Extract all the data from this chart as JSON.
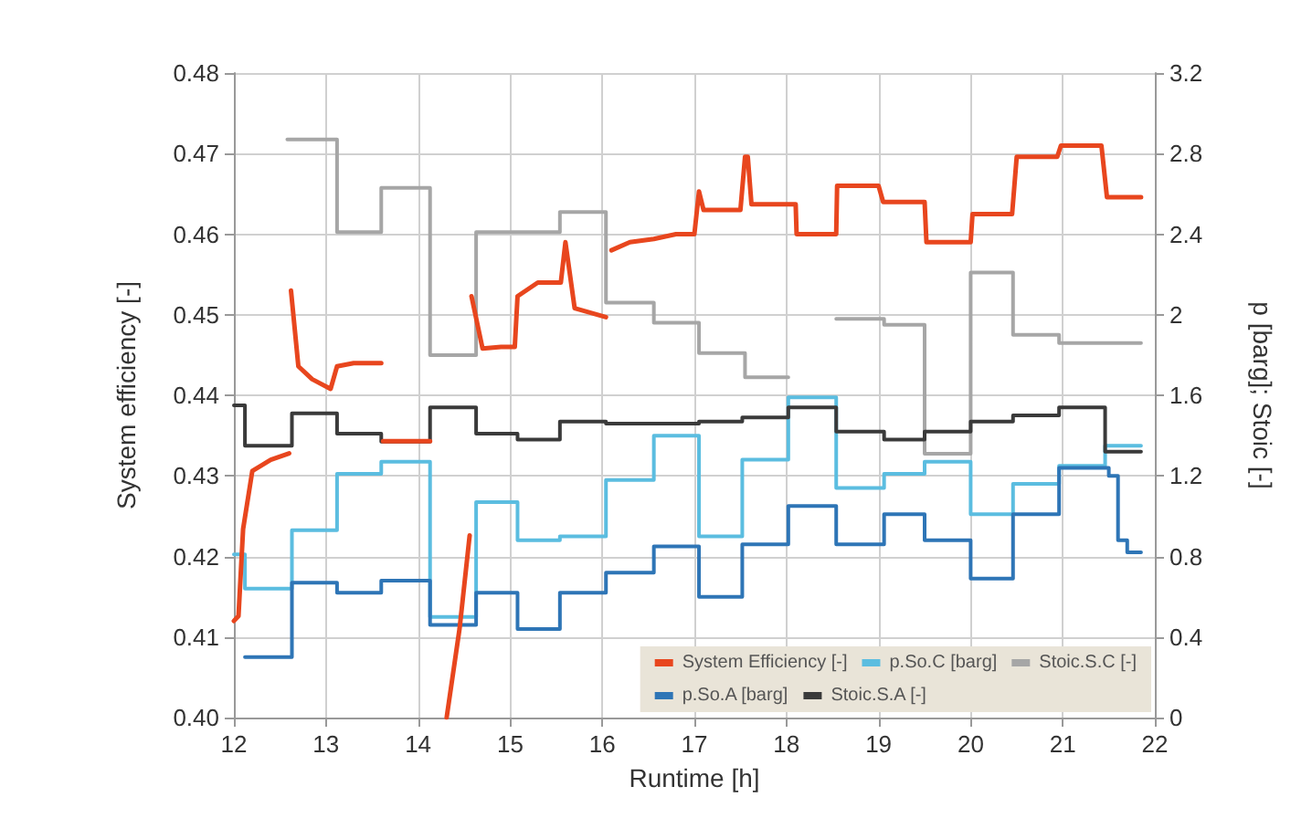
{
  "chart_data": {
    "type": "line",
    "xlabel": "Runtime [h]",
    "ylabel": "System efficiency [-]",
    "y2label": "p [barg]; Stoic [-]",
    "xlim": [
      12,
      22
    ],
    "xticks": [
      12,
      13,
      14,
      15,
      16,
      17,
      18,
      19,
      20,
      21,
      22
    ],
    "ylim": [
      0.4,
      0.48
    ],
    "yticks": [
      {
        "value": 0.4,
        "label": "0.40"
      },
      {
        "value": 0.41,
        "label": "0.41"
      },
      {
        "value": 0.42,
        "label": "0.42"
      },
      {
        "value": 0.43,
        "label": "0.43"
      },
      {
        "value": 0.44,
        "label": "0.44"
      },
      {
        "value": 0.45,
        "label": "0.45"
      },
      {
        "value": 0.46,
        "label": "0.46"
      },
      {
        "value": 0.47,
        "label": "0.47"
      },
      {
        "value": 0.48,
        "label": "0.48"
      }
    ],
    "y2lim": [
      0,
      3.2
    ],
    "y2ticks": [
      0,
      0.4,
      0.8,
      1.2,
      1.6,
      2,
      2.4,
      2.8,
      3.2
    ],
    "grid": true,
    "legend": "bottom right",
    "marker": "none",
    "line_style": "solid",
    "series": [
      {
        "name": "System Efficiency [-]",
        "color": "#e8461e",
        "x": [
          12.0,
          12.05,
          12.1,
          12.2,
          12.4,
          12.6,
          12.61,
          12.62,
          12.7,
          12.85,
          13.05,
          13.12,
          13.3,
          13.6,
          13.61,
          13.62,
          13.8,
          14.13,
          14.2,
          14.31,
          14.45,
          14.56,
          14.57,
          14.58,
          14.7,
          14.9,
          15.05,
          15.08,
          15.3,
          15.55,
          15.6,
          15.7,
          16.04,
          16.05,
          16.1,
          16.3,
          16.56,
          16.8,
          17.0,
          17.05,
          17.1,
          17.3,
          17.5,
          17.55,
          17.58,
          17.62,
          17.9,
          18.1,
          18.11,
          18.3,
          18.54,
          18.55,
          18.8,
          19.0,
          19.05,
          19.3,
          19.5,
          19.52,
          19.8,
          20.0,
          20.02,
          20.2,
          20.45,
          20.5,
          20.7,
          20.94,
          20.98,
          21.2,
          21.42,
          21.48,
          21.7,
          21.85
        ],
        "values": [
          0.412,
          0.4126,
          0.4234,
          0.4306,
          0.432,
          0.4328,
          null,
          0.453,
          0.4436,
          0.442,
          0.4408,
          0.4436,
          0.444,
          0.444,
          null,
          0.4343,
          0.4343,
          0.4343,
          null,
          0.4,
          0.411,
          0.4226,
          null,
          0.4523,
          0.4458,
          0.446,
          0.446,
          0.4523,
          0.454,
          0.454,
          0.459,
          0.4508,
          0.4497,
          null,
          0.458,
          0.459,
          0.4594,
          0.46,
          0.46,
          0.4653,
          0.463,
          0.463,
          0.463,
          0.4696,
          0.4696,
          0.4637,
          0.4637,
          0.4637,
          0.46,
          0.46,
          0.46,
          0.466,
          0.466,
          0.466,
          0.464,
          0.464,
          0.464,
          0.459,
          0.459,
          0.459,
          0.4625,
          0.4625,
          0.4625,
          0.4696,
          0.4696,
          0.4696,
          0.471,
          0.471,
          0.471,
          0.4646,
          0.4646,
          0.4646
        ]
      },
      {
        "name": "p.So.C [barg]",
        "type": "step",
        "axis": "y2",
        "color": "#5bbde0",
        "x": [
          12.0,
          12.12,
          12.63,
          13.12,
          13.6,
          14.13,
          14.63,
          15.08,
          15.54,
          16.04,
          16.56,
          17.05,
          17.52,
          18.02,
          18.54,
          19.06,
          19.5,
          20.0,
          20.46,
          20.96,
          21.46,
          21.85
        ],
        "values": [
          0.81,
          0.64,
          0.93,
          1.21,
          1.27,
          0.5,
          1.07,
          0.88,
          0.9,
          1.18,
          1.4,
          0.9,
          1.28,
          1.59,
          1.14,
          1.21,
          1.27,
          1.01,
          1.16,
          1.25,
          1.35,
          1.35
        ]
      },
      {
        "name": "Stoic.S.C [-]",
        "type": "step",
        "axis": "y2",
        "color": "#a6a6a6",
        "x": [
          12.58,
          13.12,
          13.6,
          14.13,
          14.63,
          15.08,
          15.54,
          16.04,
          16.56,
          17.05,
          17.55,
          18.02,
          18.54,
          19.06,
          19.5,
          20.0,
          20.46,
          20.96,
          21.85
        ],
        "values": [
          2.87,
          2.41,
          2.63,
          1.8,
          2.41,
          2.41,
          2.51,
          2.06,
          1.96,
          1.81,
          1.69,
          null,
          1.98,
          1.95,
          1.31,
          2.21,
          1.9,
          1.86,
          1.86
        ]
      },
      {
        "name": "p.So.A [barg]",
        "type": "step",
        "axis": "y2",
        "color": "#2e75b6",
        "x": [
          12.12,
          12.63,
          13.12,
          13.6,
          14.13,
          14.63,
          15.08,
          15.54,
          16.04,
          16.56,
          17.05,
          17.52,
          18.02,
          18.54,
          19.06,
          19.5,
          20.0,
          20.46,
          20.96,
          21.5,
          21.6,
          21.7,
          21.85
        ],
        "values": [
          0.3,
          0.67,
          0.62,
          0.68,
          0.46,
          0.62,
          0.44,
          0.62,
          0.72,
          0.85,
          0.6,
          0.86,
          1.05,
          0.86,
          1.01,
          0.88,
          0.69,
          1.01,
          1.24,
          1.2,
          0.88,
          0.82,
          0.82
        ]
      },
      {
        "name": "Stoic.S.A [-]",
        "type": "step",
        "axis": "y2",
        "color": "#3a3a3a",
        "x": [
          12.0,
          12.12,
          12.63,
          13.12,
          13.6,
          14.13,
          14.63,
          15.08,
          15.54,
          16.04,
          16.56,
          17.05,
          17.52,
          18.02,
          18.54,
          19.06,
          19.5,
          20.0,
          20.46,
          20.96,
          21.46,
          21.85
        ],
        "values": [
          1.55,
          1.35,
          1.51,
          1.41,
          1.37,
          1.54,
          1.41,
          1.38,
          1.47,
          1.46,
          1.46,
          1.47,
          1.49,
          1.54,
          1.42,
          1.38,
          1.42,
          1.47,
          1.5,
          1.54,
          1.32,
          1.32
        ]
      }
    ]
  }
}
